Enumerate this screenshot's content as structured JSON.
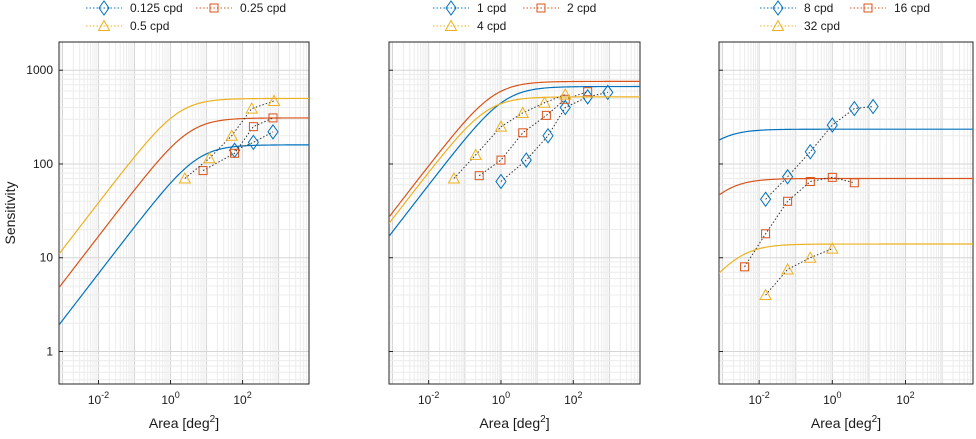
{
  "chart_data": [
    {
      "type": "line",
      "xlabel": "Area",
      "xlabel_unit": "deg",
      "xlabel_unit_exp": "2",
      "ylabel": "Sensitivity",
      "x_scale": "log",
      "y_scale": "log",
      "xlim": [
        0.0008,
        7000
      ],
      "ylim": [
        0.45,
        2000
      ],
      "x_ticks": [
        {
          "base": "10",
          "exp": "-2",
          "value": 0.01
        },
        {
          "base": "10",
          "exp": "0",
          "value": 1
        },
        {
          "base": "10",
          "exp": "2",
          "value": 100
        }
      ],
      "y_ticks": [
        {
          "label": "1",
          "value": 1
        },
        {
          "label": "10",
          "value": 10
        },
        {
          "label": "100",
          "value": 100
        },
        {
          "label": "1000",
          "value": 1000
        }
      ],
      "grid": true,
      "legend_position": "top",
      "series": [
        {
          "name": "0.125 cpd",
          "color": "#0072BD",
          "marker": "diamond",
          "x": [
            60,
            200,
            700
          ],
          "y": [
            140,
            170,
            220
          ],
          "fit": {
            "k": 0.18,
            "max": 160
          }
        },
        {
          "name": "0.25 cpd",
          "color": "#D95319",
          "marker": "square",
          "x": [
            8,
            60,
            200,
            700
          ],
          "y": [
            85,
            130,
            250,
            310
          ],
          "fit": {
            "k": 0.3,
            "max": 310
          }
        },
        {
          "name": "0.5 cpd",
          "color": "#EDB120",
          "marker": "triangle",
          "x": [
            2.5,
            12,
            50,
            180,
            750
          ],
          "y": [
            70,
            115,
            200,
            390,
            470
          ],
          "fit": {
            "k": 0.6,
            "max": 500
          }
        }
      ]
    },
    {
      "type": "line",
      "xlabel": "Area",
      "xlabel_unit": "deg",
      "xlabel_unit_exp": "2",
      "ylabel": "",
      "x_scale": "log",
      "y_scale": "log",
      "xlim": [
        0.0008,
        7000
      ],
      "ylim": [
        0.45,
        2000
      ],
      "x_ticks": [
        {
          "base": "10",
          "exp": "-2",
          "value": 0.01
        },
        {
          "base": "10",
          "exp": "0",
          "value": 1
        },
        {
          "base": "10",
          "exp": "2",
          "value": 100
        }
      ],
      "y_ticks": [],
      "grid": true,
      "legend_position": "top",
      "series": [
        {
          "name": "1 cpd",
          "color": "#0072BD",
          "marker": "diamond",
          "x": [
            1,
            5,
            20,
            60,
            250,
            900
          ],
          "y": [
            65,
            110,
            200,
            400,
            520,
            580
          ],
          "fit": {
            "k": 0.8,
            "max": 670
          }
        },
        {
          "name": "2 cpd",
          "color": "#D95319",
          "marker": "square",
          "x": [
            0.25,
            1,
            4,
            18,
            60,
            250
          ],
          "y": [
            75,
            110,
            215,
            330,
            490,
            590
          ],
          "fit": {
            "k": 1.6,
            "max": 760
          }
        },
        {
          "name": "4 cpd",
          "color": "#EDB120",
          "marker": "triangle",
          "x": [
            0.05,
            0.2,
            1,
            4,
            16,
            60
          ],
          "y": [
            70,
            125,
            250,
            350,
            450,
            550
          ],
          "fit": {
            "k": 2.5,
            "max": 520
          }
        }
      ]
    },
    {
      "type": "line",
      "xlabel": "Area",
      "xlabel_unit": "deg",
      "xlabel_unit_exp": "2",
      "ylabel": "",
      "x_scale": "log",
      "y_scale": "log",
      "xlim": [
        0.0008,
        7000
      ],
      "ylim": [
        0.45,
        2000
      ],
      "x_ticks": [
        {
          "base": "10",
          "exp": "-2",
          "value": 0.01
        },
        {
          "base": "10",
          "exp": "0",
          "value": 1
        },
        {
          "base": "10",
          "exp": "2",
          "value": 100
        }
      ],
      "y_ticks": [],
      "grid": true,
      "legend_position": "top",
      "series": [
        {
          "name": "8 cpd",
          "color": "#0072BD",
          "marker": "diamond",
          "x": [
            0.015,
            0.06,
            0.25,
            1,
            4,
            13
          ],
          "y": [
            42,
            73,
            135,
            260,
            390,
            410
          ],
          "fit": {
            "k": 1750,
            "max": 235
          }
        },
        {
          "name": "16 cpd",
          "color": "#D95319",
          "marker": "square",
          "x": [
            0.004,
            0.015,
            0.06,
            0.25,
            1,
            4
          ],
          "y": [
            8,
            18,
            40,
            65,
            72,
            63
          ],
          "fit": {
            "k": 1000,
            "max": 70
          }
        },
        {
          "name": "32 cpd",
          "color": "#EDB120",
          "marker": "triangle",
          "x": [
            0.015,
            0.06,
            0.25,
            1
          ],
          "y": [
            4,
            7.5,
            10,
            12.5
          ],
          "fit": {
            "k": 390,
            "max": 14
          }
        }
      ]
    }
  ]
}
